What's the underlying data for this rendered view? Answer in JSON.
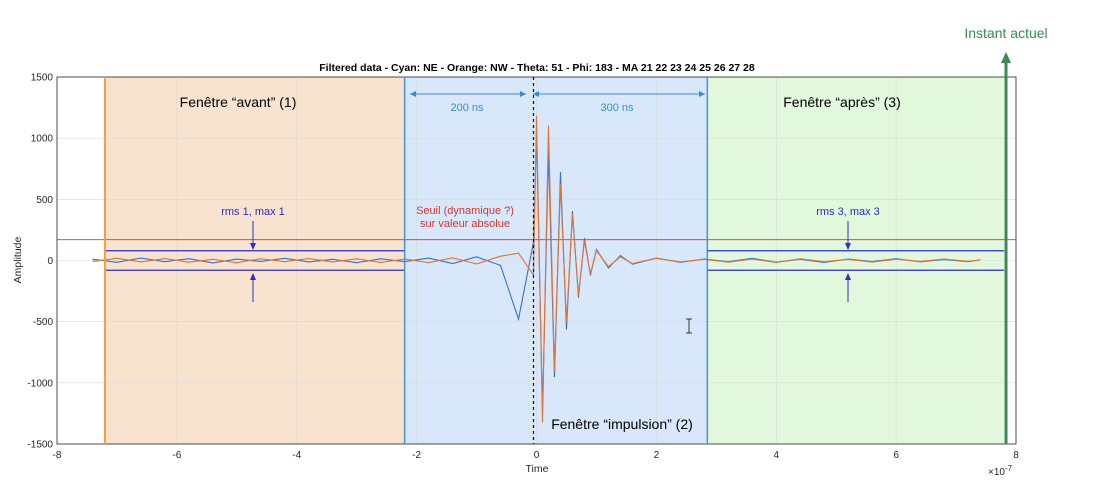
{
  "chart_data": {
    "type": "line",
    "title": "Filtered data - Cyan: NE - Orange: NW - Theta: 51 - Phi: 183 - MA 21  22  23  24  25  26  27  28",
    "xlabel": "Time",
    "ylabel": "Amplitude",
    "x_exponent": "×10",
    "x_exponent_power": "-7",
    "xlim": [
      -8,
      8
    ],
    "ylim": [
      -1500,
      1500
    ],
    "xticks": [
      -8,
      -6,
      -4,
      -2,
      0,
      2,
      4,
      6,
      8
    ],
    "yticks": [
      -1500,
      -1000,
      -500,
      0,
      500,
      1000,
      1500
    ],
    "grid": true,
    "series": [
      {
        "name": "NE",
        "color": "#3b6fd0",
        "x": [
          -7.4,
          -7.0,
          -6.6,
          -6.2,
          -5.8,
          -5.4,
          -5.0,
          -4.6,
          -4.2,
          -3.8,
          -3.4,
          -3.0,
          -2.6,
          -2.2,
          -1.8,
          -1.4,
          -1.0,
          -0.6,
          -0.3,
          -0.05,
          0.0,
          0.1,
          0.2,
          0.3,
          0.4,
          0.5,
          0.6,
          0.7,
          0.8,
          0.9,
          1.0,
          1.2,
          1.4,
          1.6,
          2.0,
          2.4,
          2.8,
          3.2,
          3.6,
          4.0,
          4.4,
          4.8,
          5.2,
          5.6,
          6.0,
          6.4,
          6.8,
          7.2,
          7.4
        ],
        "values": [
          10,
          -15,
          20,
          -10,
          15,
          -20,
          12,
          -8,
          18,
          -12,
          10,
          -18,
          14,
          -10,
          20,
          -25,
          30,
          -40,
          -480,
          150,
          1050,
          -1230,
          900,
          -950,
          720,
          -560,
          400,
          -300,
          180,
          -120,
          90,
          -60,
          40,
          -30,
          20,
          -15,
          12,
          -10,
          18,
          -14,
          10,
          -16,
          12,
          -9,
          15,
          -11,
          8,
          -10,
          5
        ]
      },
      {
        "name": "NW",
        "color": "#d9773a",
        "x": [
          -7.4,
          -7.0,
          -6.6,
          -6.2,
          -5.8,
          -5.4,
          -5.0,
          -4.6,
          -4.2,
          -3.8,
          -3.4,
          -3.0,
          -2.6,
          -2.2,
          -1.8,
          -1.4,
          -1.0,
          -0.6,
          -0.3,
          -0.05,
          0.0,
          0.1,
          0.2,
          0.3,
          0.4,
          0.5,
          0.6,
          0.7,
          0.8,
          0.9,
          1.0,
          1.2,
          1.4,
          1.6,
          2.0,
          2.4,
          2.8,
          3.2,
          3.6,
          4.0,
          4.4,
          4.8,
          5.2,
          5.6,
          6.0,
          6.4,
          6.8,
          7.2,
          7.4
        ],
        "values": [
          -8,
          18,
          -12,
          16,
          -14,
          10,
          -18,
          14,
          -10,
          16,
          -12,
          14,
          -16,
          12,
          -18,
          22,
          -28,
          35,
          60,
          -120,
          1180,
          -1320,
          1100,
          -900,
          620,
          -500,
          380,
          -280,
          160,
          -110,
          80,
          -50,
          30,
          -25,
          18,
          -12,
          10,
          -14,
          12,
          -16,
          14,
          -10,
          9,
          -13,
          11,
          -8,
          12,
          -7,
          4
        ]
      }
    ],
    "annotations": {
      "current_instant": "Instant actuel",
      "window_before": "Fenêtre “avant” (1)",
      "window_impulse": "Fenêtre “impulsion” (2)",
      "window_after": "Fenêtre “après” (3)",
      "ns_200": "200 ns",
      "ns_300": "300 ns",
      "rms1": "rms 1, max 1",
      "rms3": "rms 3, max 3",
      "threshold_line1": "Seuil (dynamique ?)",
      "threshold_line2": "sur valeur absolue"
    },
    "windows": {
      "before": {
        "x": [
          -7.2,
          -2.2
        ],
        "color": "#f8e3cf"
      },
      "impulse": {
        "x": [
          -2.2,
          2.85
        ],
        "color": "#d8e8fa"
      },
      "after": {
        "x": [
          2.85,
          7.8
        ],
        "color": "#e2f8dc"
      }
    },
    "threshold": 170,
    "rms_band": [
      -80,
      80
    ],
    "colors": {
      "orange_edge": "#f0a040",
      "blue_edge": "#4a90e0",
      "rms_line": "#2c2cc8",
      "threshold": "#d8352a",
      "green": "#3a8a52"
    }
  }
}
